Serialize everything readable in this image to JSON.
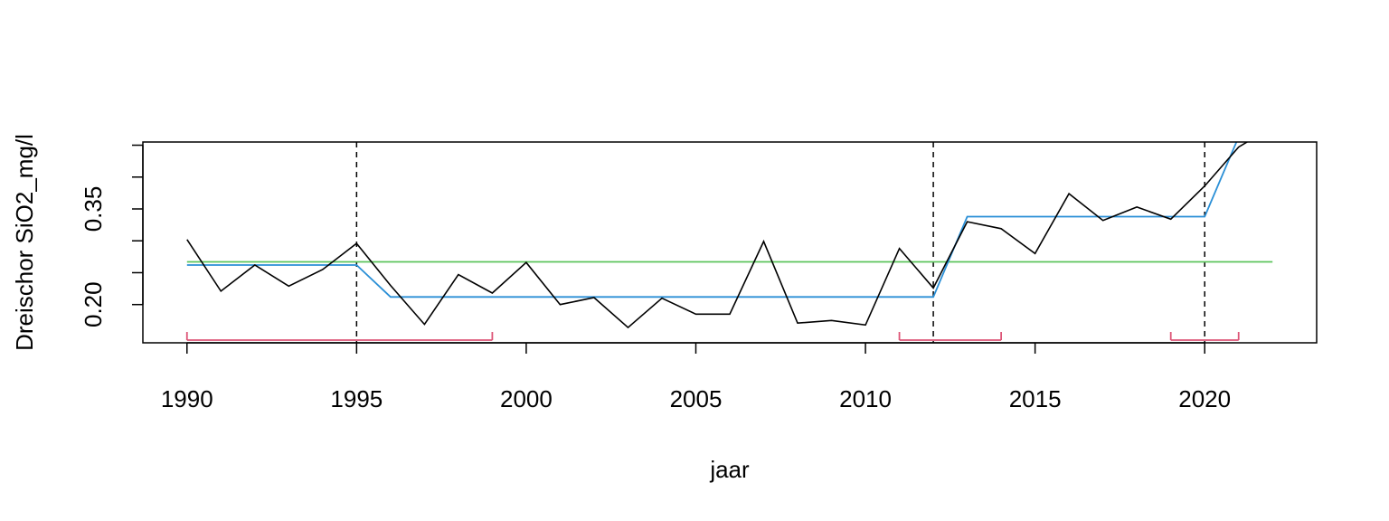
{
  "chart_data": {
    "type": "line",
    "xlabel": "jaar",
    "ylabel": "Dreischor SiO2_mg/l",
    "xlim": [
      1988.7,
      2023.3
    ],
    "ylim": [
      0.14,
      0.455
    ],
    "x_ticks": [
      1990,
      1995,
      2000,
      2005,
      2010,
      2015,
      2020
    ],
    "y_ticks": [
      0.2,
      0.25,
      0.3,
      0.35,
      0.4,
      0.45
    ],
    "y_tick_labels": [
      "0.20",
      "",
      "",
      "0.35",
      "",
      ""
    ],
    "grid": false,
    "series": [
      {
        "role": "observed",
        "color": "#000000",
        "x": [
          1990,
          1991,
          1992,
          1993,
          1994,
          1995,
          1996,
          1997,
          1998,
          1999,
          2000,
          2001,
          2002,
          2003,
          2004,
          2005,
          2006,
          2007,
          2008,
          2009,
          2010,
          2011,
          2012,
          2013,
          2014,
          2015,
          2016,
          2017,
          2018,
          2019,
          2020,
          2021,
          2022
        ],
        "y": [
          0.302,
          0.221,
          0.262,
          0.229,
          0.255,
          0.296,
          0.23,
          0.169,
          0.247,
          0.218,
          0.266,
          0.2,
          0.211,
          0.164,
          0.21,
          0.185,
          0.185,
          0.299,
          0.171,
          0.175,
          0.168,
          0.288,
          0.226,
          0.33,
          0.319,
          0.28,
          0.374,
          0.332,
          0.353,
          0.334,
          0.386,
          0.447,
          0.479
        ]
      },
      {
        "role": "segmented-fit",
        "color": "#2a8fd6",
        "x": [
          1990,
          1995,
          1996,
          2012,
          2013,
          2020,
          2021,
          2022
        ],
        "y": [
          0.262,
          0.262,
          0.212,
          0.212,
          0.338,
          0.338,
          0.463,
          0.463
        ]
      },
      {
        "role": "overall-mean",
        "color": "#5cc45c",
        "x": [
          1990,
          2022
        ],
        "y": [
          0.267,
          0.267
        ]
      }
    ],
    "breakpoints": [
      1995,
      2012,
      2020
    ],
    "confidence_intervals": {
      "color": "#dd5577",
      "intervals": [
        [
          1990,
          1999
        ],
        [
          2011,
          2014
        ],
        [
          2019,
          2021
        ]
      ]
    }
  }
}
